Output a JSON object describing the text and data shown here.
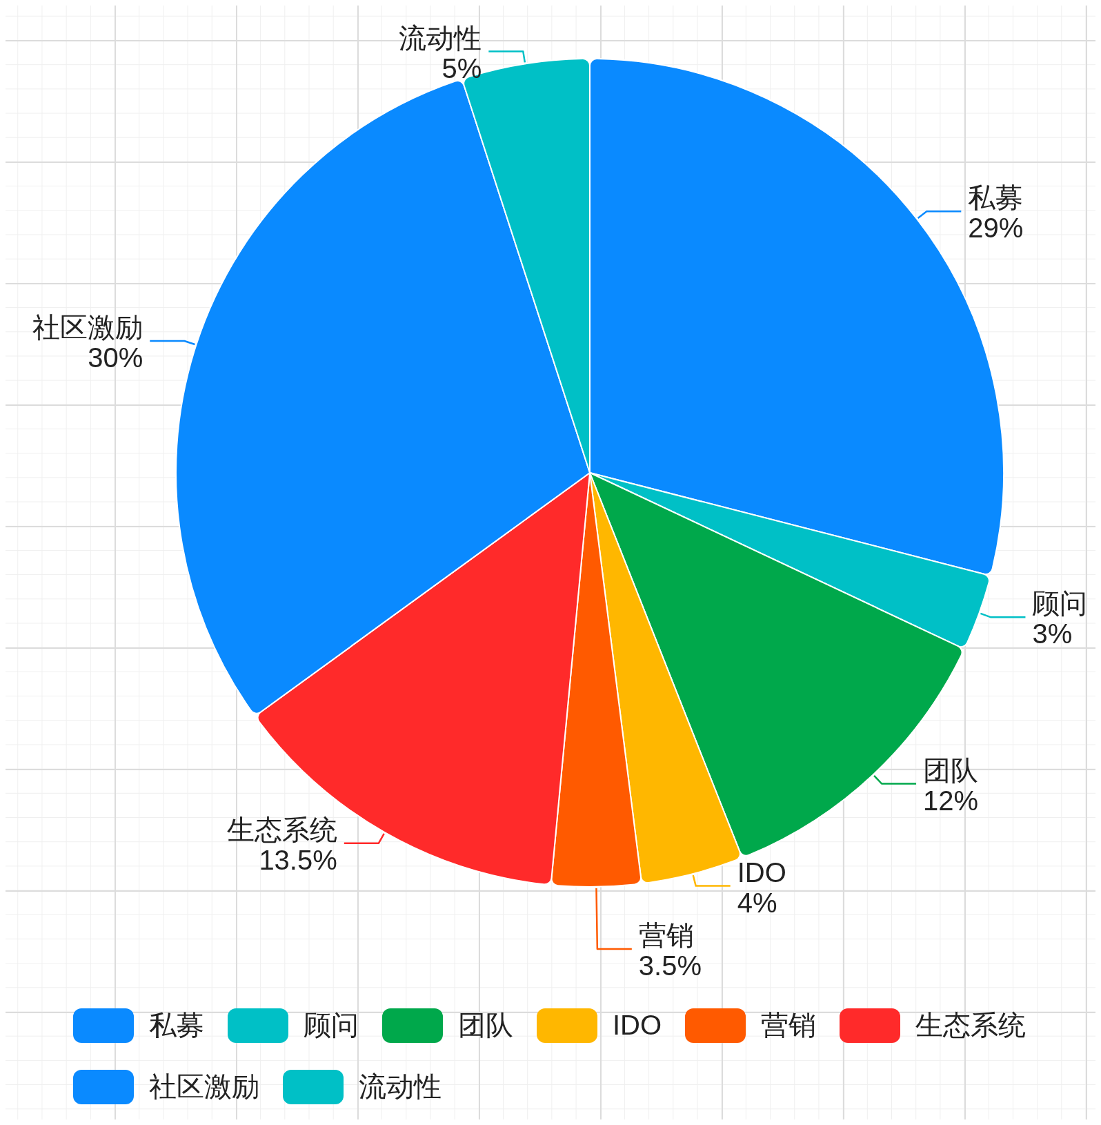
{
  "chart_data": {
    "type": "pie",
    "categories": [
      "私募",
      "顾问",
      "团队",
      "IDO",
      "营销",
      "生态系统",
      "社区激励",
      "流动性"
    ],
    "values": [
      29,
      3,
      12,
      4,
      3.5,
      13.5,
      30,
      5
    ],
    "value_labels": [
      "29%",
      "3%",
      "12%",
      "4%",
      "3.5%",
      "13.5%",
      "30%",
      "5%"
    ],
    "colors": [
      "#0a8aff",
      "#00c0c6",
      "#00a84b",
      "#ffb700",
      "#ff5a00",
      "#ff2a2a",
      "#0a8aff",
      "#00c0c6"
    ],
    "legend": "bottom",
    "grid": true
  }
}
